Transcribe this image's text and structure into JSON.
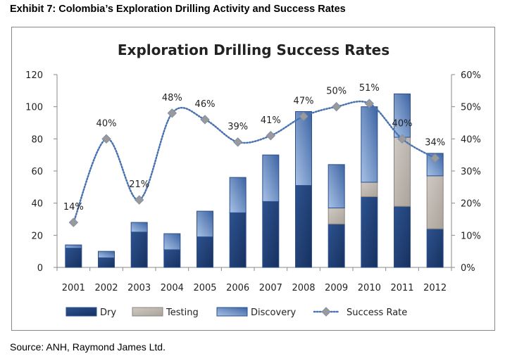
{
  "exhibit_title": "Exhibit 7: Colombia’s Exploration Drilling Activity and Success Rates",
  "source": "Source: ANH, Raymond James Ltd.",
  "chart_data": {
    "type": "bar",
    "stacked": true,
    "title": "Exploration Drilling Success Rates",
    "categories": [
      "2001",
      "2002",
      "2003",
      "2004",
      "2005",
      "2006",
      "2007",
      "2008",
      "2009",
      "2010",
      "2011",
      "2012"
    ],
    "series": [
      {
        "name": "Dry",
        "color": "#1f3f78",
        "values": [
          12,
          6,
          22,
          11,
          19,
          34,
          41,
          51,
          27,
          44,
          38,
          24
        ]
      },
      {
        "name": "Testing",
        "color": "#bdb6ae",
        "values": [
          0,
          0,
          0,
          0,
          0,
          0,
          0,
          0,
          10,
          9,
          43,
          33
        ]
      },
      {
        "name": "Discovery",
        "color": "#8fb0dc",
        "values": [
          2,
          4,
          6,
          10,
          16,
          22,
          29,
          46,
          27,
          47,
          27,
          14
        ]
      }
    ],
    "line_series": {
      "name": "Success Rate",
      "axis": "right",
      "color": "#4a72b0",
      "marker_color": "#9a9a9a",
      "values": [
        14,
        40,
        21,
        48,
        46,
        39,
        41,
        47,
        50,
        51,
        40,
        34
      ],
      "labels": [
        "14%",
        "40%",
        "21%",
        "48%",
        "46%",
        "39%",
        "41%",
        "47%",
        "50%",
        "51%",
        "40%",
        "34%"
      ]
    },
    "ylim": [
      0,
      120
    ],
    "yticks": [
      "0",
      "20",
      "40",
      "60",
      "80",
      "100",
      "120"
    ],
    "y2lim": [
      0,
      60
    ],
    "y2ticks": [
      "0%",
      "10%",
      "20%",
      "30%",
      "40%",
      "50%",
      "60%"
    ],
    "grid": false,
    "legend": "bottom"
  }
}
